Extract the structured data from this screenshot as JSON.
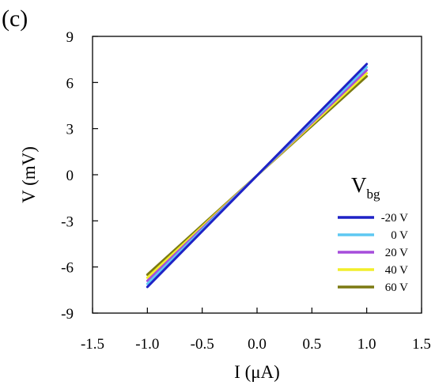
{
  "chart_data": {
    "type": "line",
    "panel_label": "(c)",
    "xlabel": "I (μA)",
    "ylabel": "V (mV)",
    "xlim": [
      -1.5,
      1.5
    ],
    "ylim": [
      -9,
      9
    ],
    "xticks": [
      -1.5,
      -1.0,
      -0.5,
      0.0,
      0.5,
      1.0,
      1.5
    ],
    "xtick_labels": [
      "-1.5",
      "-1.0",
      "-0.5",
      "0.0",
      "0.5",
      "1.0",
      "1.5"
    ],
    "yticks": [
      -9,
      -6,
      -3,
      0,
      3,
      6,
      9
    ],
    "ytick_labels": [
      "-9",
      "-6",
      "-3",
      "0",
      "3",
      "6",
      "9"
    ],
    "grid": false,
    "legend_title_main": "V",
    "legend_title_sub": "bg",
    "legend_position": "bottom-right",
    "series": [
      {
        "name": "-20 V",
        "color": "#1f22c6",
        "x": [
          -1.0,
          1.0
        ],
        "y": [
          -7.3,
          7.2
        ]
      },
      {
        "name": " 0 V",
        "color": "#5ec8f2",
        "x": [
          -1.0,
          1.0
        ],
        "y": [
          -7.1,
          7.0
        ]
      },
      {
        "name": "20 V",
        "color": "#a64ddb",
        "x": [
          -1.0,
          1.0
        ],
        "y": [
          -6.9,
          6.8
        ]
      },
      {
        "name": "40 V",
        "color": "#f2ee2a",
        "x": [
          -1.0,
          1.0
        ],
        "y": [
          -6.7,
          6.6
        ]
      },
      {
        "name": "60 V",
        "color": "#7c7a12",
        "x": [
          -1.0,
          1.0
        ],
        "y": [
          -6.5,
          6.4
        ]
      }
    ]
  }
}
